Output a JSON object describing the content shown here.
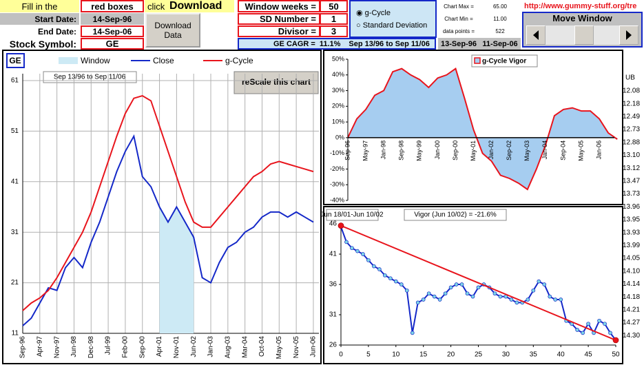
{
  "controls": {
    "fill_label": "Fill in the",
    "red_boxes": "red boxes",
    "click": "click",
    "download": "Download",
    "start_label": "Start Date:",
    "start_date": "14-Sep-96",
    "end_label": "End Date:",
    "end_date": "14-Sep-06",
    "symbol_label": "Stock Symbol:",
    "symbol": "GE",
    "download_button": "Download Data"
  },
  "params": {
    "window_weeks_label": "Window weeks =",
    "window_weeks": 50,
    "sd_label": "SD Number =",
    "sd": 1,
    "divisor_label": "Divisor =",
    "divisor": 3,
    "cagr_label": "GE CAGR =",
    "cagr": "11.1%",
    "cagr_period": "Sep 13/96 to Sep 11/06"
  },
  "radio": {
    "options": [
      "g-Cycle",
      "Standard Deviation"
    ],
    "selected": 0
  },
  "stats": {
    "max_label": "Chart Max =",
    "max": "65.00",
    "min_label": "Chart Min =",
    "min": "11.00",
    "points_label": "data points =",
    "points": 522,
    "start": "13-Sep-96",
    "end": "11-Sep-06"
  },
  "link": "http://www.gummy-stuff.org/tre",
  "move_window": "Move Window",
  "ub": {
    "header": "UB",
    "values": [
      "12.08",
      "12.18",
      "12.49",
      "12.73",
      "12.88",
      "13.10",
      "13.12",
      "13.47",
      "13.73",
      "13.96",
      "13.95",
      "13.93",
      "13.99",
      "14.05",
      "14.10",
      "14.14",
      "14.18",
      "14.21",
      "14.27",
      "14.30"
    ]
  },
  "chart_data": [
    {
      "type": "line",
      "label": "GE",
      "subtitle": "Sep 13/96 to Sep 11/06",
      "button": "reScale this chart",
      "categories": [
        "Sep-96",
        null,
        "Apr-97",
        null,
        "Nov-97",
        null,
        "Jun-98",
        null,
        "Dec-98",
        null,
        "Jul-99",
        null,
        "Feb-00",
        null,
        "Sep-00",
        null,
        "Apr-01",
        null,
        "Nov-01",
        null,
        "Jun-02",
        null,
        "Jan-03",
        null,
        "Aug-03",
        null,
        "Mar-04",
        null,
        "Oct-04",
        null,
        "May-05",
        null,
        "Nov-05",
        null,
        "Jun-06"
      ],
      "series": [
        {
          "name": "Window",
          "color": "#cdeaf5",
          "style": "area",
          "values": [
            null,
            null,
            null,
            null,
            null,
            null,
            null,
            null,
            null,
            null,
            null,
            null,
            null,
            null,
            null,
            null,
            36,
            33,
            36,
            33,
            30,
            null,
            null,
            null,
            null,
            null,
            null,
            null,
            null,
            null,
            null,
            null,
            null,
            null,
            null
          ]
        },
        {
          "name": "Close",
          "color": "#1428c8",
          "style": "line",
          "values": [
            12.5,
            14,
            17,
            20,
            19.5,
            24,
            26,
            24,
            29,
            33,
            38,
            43,
            47,
            50,
            42,
            40,
            36,
            33,
            36,
            33,
            30,
            22,
            21,
            25,
            28,
            29,
            31,
            32,
            34,
            35,
            35,
            34,
            35,
            34,
            33
          ]
        },
        {
          "name": "g-Cycle",
          "color": "#e8141c",
          "style": "line",
          "values": [
            15.5,
            17,
            18,
            19.5,
            22,
            25,
            28,
            31,
            35,
            40,
            45,
            50,
            54.5,
            57.5,
            58,
            57,
            52,
            47,
            42,
            37,
            33,
            32,
            32,
            34,
            36,
            38,
            40,
            42,
            43,
            44.5,
            45,
            44.5,
            44,
            43.5,
            43
          ]
        }
      ],
      "ylim": [
        11,
        61
      ],
      "yticks": [
        11,
        21,
        31,
        41,
        51,
        61
      ],
      "grid": true
    },
    {
      "type": "area",
      "categories": [
        "Sep-96",
        null,
        "May-97",
        null,
        "Jan-98",
        null,
        "Sep-98",
        null,
        "May-99",
        null,
        "Jan-00",
        null,
        "Sep-00",
        null,
        "May-01",
        null,
        "Jan-02",
        null,
        "Sep-02",
        null,
        "May-03",
        null,
        "Jan-04",
        null,
        "Sep-04",
        null,
        "May-05",
        null,
        "Jan-06",
        null,
        null
      ],
      "series": [
        {
          "name": "g-Cycle Vigor",
          "color": "#a6cdf0",
          "line_color": "#e8141c",
          "values": [
            0,
            12,
            18,
            27,
            30,
            42,
            44,
            40,
            37,
            32,
            38,
            40,
            44,
            25,
            5,
            -10,
            -15,
            -24,
            -26,
            -29,
            -33,
            -20,
            -5,
            14,
            18,
            19,
            17,
            17,
            12,
            3,
            -1
          ]
        }
      ],
      "ylim": [
        -40,
        50
      ],
      "yticks": [
        {
          "value": -40,
          "label": "-40%"
        },
        {
          "value": -30,
          "label": "-30%"
        },
        {
          "value": -20,
          "label": "-20%"
        },
        {
          "value": -10,
          "label": "-10%"
        },
        {
          "value": 0,
          "label": "0%"
        },
        {
          "value": 10,
          "label": "10%"
        },
        {
          "value": 20,
          "label": "20%"
        },
        {
          "value": 30,
          "label": "30%"
        },
        {
          "value": 40,
          "label": "40%"
        },
        {
          "value": 50,
          "label": "50%"
        }
      ]
    },
    {
      "type": "line",
      "title": "Jun 18/01-Jun 10/02",
      "annotation": "Vigor (Jun 10/02) = -21.6%",
      "x": [
        0,
        1,
        2,
        3,
        4,
        5,
        6,
        7,
        8,
        9,
        10,
        11,
        12,
        13,
        14,
        15,
        16,
        17,
        18,
        19,
        20,
        21,
        22,
        23,
        24,
        25,
        26,
        27,
        28,
        29,
        30,
        31,
        32,
        33,
        34,
        35,
        36,
        37,
        38,
        39,
        40,
        41,
        42,
        43,
        44,
        45,
        46,
        47,
        48,
        49,
        50
      ],
      "series": [
        {
          "color": "#1428c8",
          "marker_color": "#7fd6e6",
          "values": [
            45.5,
            43,
            42,
            41.5,
            41,
            40,
            39,
            38.5,
            37.5,
            37,
            36.5,
            36,
            35,
            28,
            33,
            33.5,
            34.5,
            34,
            33.5,
            34.5,
            35.5,
            36,
            36,
            34.5,
            34,
            35.5,
            36,
            35.5,
            34.5,
            34,
            34,
            33.5,
            33,
            33,
            33.5,
            35,
            36.5,
            36,
            34,
            33.5,
            33.5,
            30,
            29.5,
            28.5,
            28,
            29.5,
            28,
            30,
            29.5,
            28,
            26.8
          ]
        },
        {
          "color": "#e8141c",
          "x": [
            0,
            50
          ],
          "values": [
            45.7,
            26.8
          ]
        }
      ],
      "xlim": [
        0,
        50
      ],
      "xticks": [
        0,
        5,
        10,
        15,
        20,
        25,
        30,
        35,
        40,
        45,
        50
      ],
      "ylim": [
        26,
        46
      ],
      "yticks": [
        26,
        31,
        36,
        41,
        46
      ]
    }
  ]
}
